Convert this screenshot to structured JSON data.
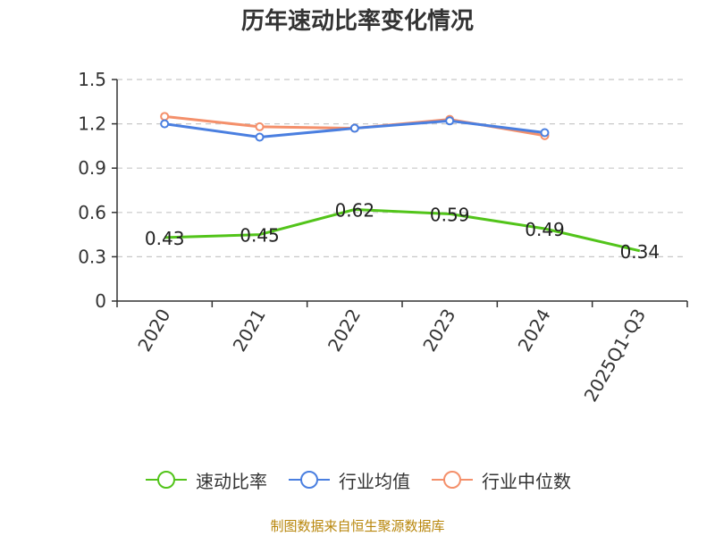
{
  "chart_data": {
    "type": "line",
    "title": "历年速动比率变化情况",
    "categories": [
      "2020",
      "2021",
      "2022",
      "2023",
      "2024",
      "2025Q1-Q3"
    ],
    "series": [
      {
        "name": "速动比率",
        "color": "#52c41a",
        "values": [
          0.43,
          0.45,
          0.62,
          0.59,
          0.49,
          0.34
        ],
        "labels": [
          "0.43",
          "0.45",
          "0.62",
          "0.59",
          "0.49",
          "0.34"
        ]
      },
      {
        "name": "行业均值",
        "color": "#4a7fe0",
        "values": [
          1.2,
          1.11,
          1.17,
          1.22,
          1.14,
          null
        ]
      },
      {
        "name": "行业中位数",
        "color": "#f4906b",
        "values": [
          1.25,
          1.18,
          1.17,
          1.23,
          1.12,
          null
        ]
      }
    ],
    "ylim": [
      0,
      1.5
    ],
    "yticks": [
      "0",
      "0.3",
      "0.6",
      "0.9",
      "1.2",
      "1.5"
    ],
    "ytick_values": [
      0,
      0.3,
      0.6,
      0.9,
      1.2,
      1.5
    ],
    "grid": true,
    "legend": "bottom",
    "xlabel": "",
    "ylabel": ""
  },
  "source": "制图数据来自恒生聚源数据库"
}
